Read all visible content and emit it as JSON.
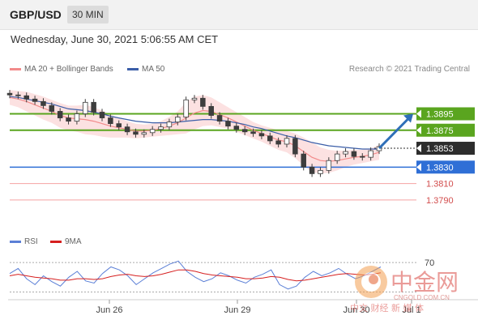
{
  "header": {
    "symbol": "GBP/USD",
    "interval": "30 MIN"
  },
  "timestamp": "Wednesday, June 30, 2021 5:06:55 AM CET",
  "legend": {
    "ma20_bb": {
      "label": "MA 20 + Bollinger Bands",
      "color": "#f28b8b"
    },
    "ma50": {
      "label": "MA 50",
      "color": "#3b5ea8"
    }
  },
  "copyright": "Research © 2021 Trading Central",
  "rsi_legend": {
    "rsi": {
      "label": "RSI",
      "color": "#5b7fd6"
    },
    "ma9": {
      "label": "9MA",
      "color": "#d61f1f"
    }
  },
  "colors": {
    "resistance": "#5aa51f",
    "support": "#2f6fd6",
    "minor": "#f4a3a3",
    "current": "#2d2d2d",
    "candle": "#3d3d3d",
    "bollinger": "#fbdada",
    "forecast_arrow": "#2f6fb8"
  },
  "watermark": {
    "brand": "中金网",
    "domain": "CNGOLD.COM.CN",
    "tagline": "中文 财经 新 媒 体"
  },
  "chart_data": [
    {
      "type": "candlestick",
      "title": "GBP/USD 30 MIN",
      "x_ticks": [
        "Jun 26",
        "Jun 29",
        "Jun 30",
        "Jul 1"
      ],
      "ylim": [
        1.3775,
        1.3935
      ],
      "grid": false,
      "levels": [
        {
          "value": 1.3895,
          "label": "1.3895",
          "kind": "resistance"
        },
        {
          "value": 1.3875,
          "label": "1.3875",
          "kind": "resistance"
        },
        {
          "value": 1.3853,
          "label": "1.3853",
          "kind": "current"
        },
        {
          "value": 1.383,
          "label": "1.3830",
          "kind": "support"
        },
        {
          "value": 1.381,
          "label": "1.3810",
          "kind": "minor"
        },
        {
          "value": 1.379,
          "label": "1.3790",
          "kind": "minor"
        }
      ],
      "close_path": [
        1.3918,
        1.3917,
        1.3913,
        1.391,
        1.3905,
        1.3898,
        1.389,
        1.3886,
        1.3895,
        1.3909,
        1.3897,
        1.389,
        1.3883,
        1.3879,
        1.3873,
        1.387,
        1.3872,
        1.3876,
        1.3879,
        1.3885,
        1.3891,
        1.3912,
        1.3914,
        1.3904,
        1.3893,
        1.3886,
        1.388,
        1.3876,
        1.3873,
        1.3871,
        1.3868,
        1.3862,
        1.3858,
        1.3865,
        1.3846,
        1.383,
        1.3822,
        1.3826,
        1.3838,
        1.3846,
        1.3849,
        1.3843,
        1.3842,
        1.385,
        1.3855
      ],
      "ma20": [
        1.3915,
        1.3913,
        1.391,
        1.3906,
        1.3902,
        1.3898,
        1.3893,
        1.389,
        1.3889,
        1.3888,
        1.3886,
        1.3883,
        1.388,
        1.3878,
        1.3876,
        1.3874,
        1.3874,
        1.3875,
        1.3877,
        1.388,
        1.3884,
        1.389,
        1.3896,
        1.3899,
        1.3898,
        1.3894,
        1.389,
        1.3885,
        1.388,
        1.3875,
        1.3871,
        1.3867,
        1.3863,
        1.3861,
        1.3856,
        1.3849,
        1.3842,
        1.3838,
        1.3837,
        1.3838,
        1.384,
        1.3842,
        1.3843,
        1.3845,
        1.3848
      ],
      "ma50": [
        1.3916,
        1.3915,
        1.3913,
        1.3911,
        1.3909,
        1.3907,
        1.3904,
        1.3901,
        1.39,
        1.3899,
        1.3897,
        1.3895,
        1.3892,
        1.389,
        1.3888,
        1.3886,
        1.3885,
        1.3884,
        1.3884,
        1.3884,
        1.3885,
        1.3886,
        1.3887,
        1.3888,
        1.3888,
        1.3887,
        1.3886,
        1.3884,
        1.3882,
        1.3879,
        1.3877,
        1.3874,
        1.3871,
        1.3868,
        1.3866,
        1.3863,
        1.386,
        1.3858,
        1.3856,
        1.3855,
        1.3854,
        1.3853,
        1.3852,
        1.3852,
        1.3852
      ],
      "bb_width": [
        0.0009,
        0.001,
        0.0012,
        0.0013,
        0.0014,
        0.0014,
        0.0015,
        0.0015,
        0.0016,
        0.0018,
        0.0017,
        0.0016,
        0.0014,
        0.0012,
        0.001,
        0.0009,
        0.0008,
        0.0008,
        0.0009,
        0.0011,
        0.0014,
        0.0019,
        0.002,
        0.0019,
        0.0017,
        0.0015,
        0.0013,
        0.0012,
        0.0011,
        0.001,
        0.001,
        0.0011,
        0.0012,
        0.0013,
        0.0015,
        0.0017,
        0.0018,
        0.0016,
        0.0014,
        0.0012,
        0.001,
        0.0009,
        0.0008,
        0.0008,
        0.0009
      ],
      "forecast": {
        "from": 1.3853,
        "to": 1.3895
      }
    },
    {
      "type": "line",
      "title": "RSI",
      "ylim": [
        25,
        80
      ],
      "y_ticks": [
        {
          "value": 70,
          "label": "70"
        }
      ],
      "series": [
        {
          "name": "RSI",
          "values": [
            55,
            62,
            48,
            40,
            52,
            44,
            38,
            50,
            58,
            45,
            42,
            55,
            64,
            60,
            52,
            40,
            48,
            56,
            62,
            68,
            72,
            58,
            50,
            44,
            48,
            56,
            52,
            46,
            42,
            50,
            54,
            60,
            40,
            34,
            38,
            50,
            58,
            52,
            56,
            62,
            54,
            48,
            52,
            58,
            64
          ]
        },
        {
          "name": "9MA",
          "values": [
            52,
            54,
            52,
            50,
            49,
            48,
            46,
            46,
            48,
            48,
            47,
            48,
            51,
            53,
            54,
            52,
            51,
            52,
            54,
            57,
            60,
            60,
            58,
            55,
            53,
            52,
            51,
            50,
            48,
            48,
            49,
            51,
            50,
            47,
            45,
            46,
            48,
            50,
            52,
            54,
            55,
            54,
            53,
            54,
            56
          ]
        }
      ]
    }
  ]
}
